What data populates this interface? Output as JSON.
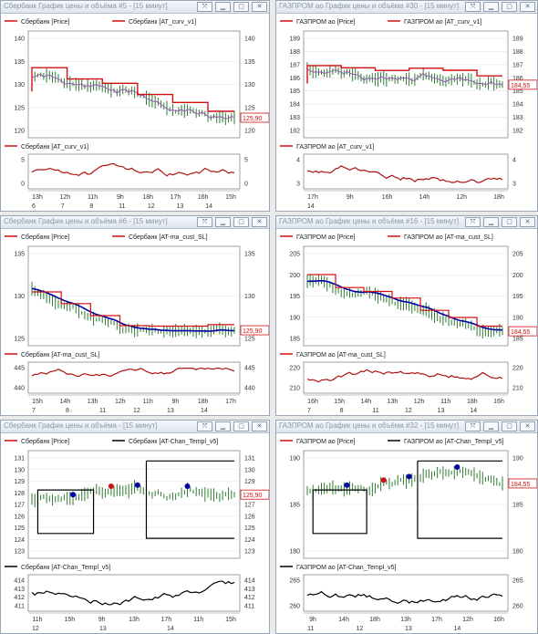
{
  "colors": {
    "price": "#d01010",
    "accent": "#0000a8",
    "candle": "#2e7d32",
    "indicator": "#b01010"
  },
  "window_buttons": {
    "resize": "⤧",
    "min": "▁",
    "max": "▢",
    "close": "✕"
  },
  "windows": [
    {
      "title": "Сбербанк График цены и объёма #5 - [15 минут]",
      "legend": [
        {
          "swatch": "red",
          "text": "Сбербанк [Price]"
        },
        {
          "swatch": "red",
          "text": "Сбербанк [AT_curv_v1]"
        }
      ],
      "y_ticks": [
        "140",
        "135",
        "130",
        "125",
        "120"
      ],
      "price_badge": "125,90",
      "sub_legend": "Сбербанк [AT_curv_v1]",
      "sub_ticks": [
        "5",
        "0"
      ],
      "x_hours": [
        "13h",
        "12h",
        "11h",
        "9h",
        "18h",
        "17h",
        "16h",
        "15h"
      ],
      "x_dates": [
        "6",
        "7",
        "8",
        "11",
        "12",
        "13",
        "14"
      ]
    },
    {
      "title": "ГАЗПРОМ ао График цены и объёма #30 - [15 минут]",
      "legend": [
        {
          "swatch": "red",
          "text": "ГАЗПРОМ ао [Price]"
        },
        {
          "swatch": "red",
          "text": "ГАЗПРОМ ао [AT_curv_v1]"
        }
      ],
      "y_ticks": [
        "189",
        "188",
        "187",
        "186",
        "185",
        "184",
        "183",
        "182"
      ],
      "price_badge": "184,55",
      "sub_legend": "ГАЗПРОМ ао [AT_curv_v1]",
      "sub_ticks": [
        "4",
        "3"
      ],
      "x_hours": [
        "17h",
        "9h",
        "16h",
        "14h",
        "12h",
        "18h"
      ],
      "x_dates": [
        "14"
      ]
    },
    {
      "title": "Сбербанк График цены и объёма #6 - [15 минут]",
      "legend": [
        {
          "swatch": "red",
          "text": "Сбербанк [Price]"
        },
        {
          "swatch": "red",
          "text": "Сбербанк [AT-ma_cust_SL]"
        }
      ],
      "y_ticks": [
        "135",
        "130",
        "125"
      ],
      "price_badge": "125,90",
      "sub_legend": "Сбербанк [AT-ma_cust_SL]",
      "sub_ticks": [
        "445",
        "440"
      ],
      "x_hours": [
        "15h",
        "14h",
        "13h",
        "12h",
        "11h",
        "9h",
        "18h",
        "17h"
      ],
      "x_dates": [
        "7",
        "8",
        "11",
        "12",
        "13",
        "14"
      ]
    },
    {
      "title": "ГАЗПРОМ ао График цены и объёма #16 - [15 минут]",
      "legend": [
        {
          "swatch": "red",
          "text": "ГАЗПРОМ ао [Price]"
        },
        {
          "swatch": "red",
          "text": "ГАЗПРОМ ао [AT-ma_cust_SL]"
        }
      ],
      "y_ticks": [
        "205",
        "200",
        "195",
        "190",
        "185"
      ],
      "price_badge": "184,55",
      "sub_legend": "ГАЗПРОМ ао [AT-ma_cust_SL]",
      "sub_ticks": [
        "220",
        "210"
      ],
      "x_hours": [
        "16h",
        "15h",
        "14h",
        "13h",
        "12h",
        "11h",
        "18h",
        "16h"
      ],
      "x_dates": [
        "7",
        "8",
        "11",
        "12",
        "13",
        "14"
      ]
    },
    {
      "title": "Сбербанк График цены и объёма - [15 минут]",
      "legend": [
        {
          "swatch": "red",
          "text": "Сбербанк [Price]"
        },
        {
          "swatch": "black",
          "text": "Сбербанк [AT-Chan_Templ_v5]"
        }
      ],
      "y_ticks": [
        "131",
        "130",
        "129",
        "128",
        "127",
        "126",
        "125",
        "124",
        "123"
      ],
      "price_badge": "125,90",
      "sub_legend": "Сбербанк [AT-Chan_Templ_v5]",
      "sub_ticks": [
        "414",
        "413",
        "412",
        "411"
      ],
      "x_hours": [
        "11h",
        "15h",
        "9h",
        "13h",
        "17h",
        "11h",
        "15h"
      ],
      "x_dates": [
        "12",
        "13",
        "14"
      ]
    },
    {
      "title": "ГАЗПРОМ ао График цены и объёма #32 - [15 минут]",
      "legend": [
        {
          "swatch": "red",
          "text": "ГАЗПРОМ ао [Price]"
        },
        {
          "swatch": "black",
          "text": "ГАЗПРОМ ао [AT-Chan_Templ_v5]"
        }
      ],
      "y_ticks": [
        "190",
        "185",
        "180"
      ],
      "price_badge": "184,55",
      "sub_legend": "ГАЗПРОМ ао [AT-Chan_Templ_v5]",
      "sub_ticks": [
        "265",
        "260"
      ],
      "x_hours": [
        "9h",
        "14h",
        "18h",
        "13h",
        "17h",
        "12h",
        "16h"
      ],
      "x_dates": [
        "11",
        "12",
        "13",
        "14"
      ]
    }
  ]
}
